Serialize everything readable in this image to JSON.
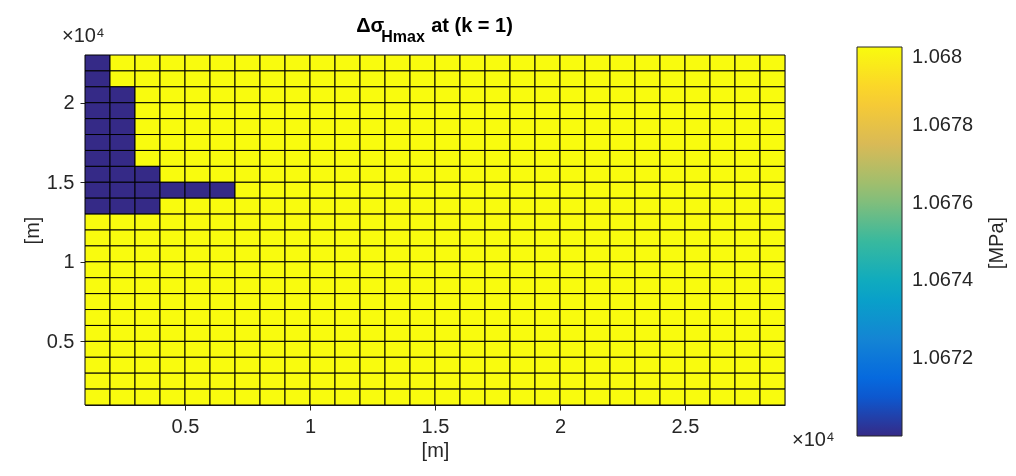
{
  "chart_data": {
    "type": "heatmap",
    "title": "Δσ$_{Hmax}$ at (k = 1)",
    "xlabel": "[m]",
    "ylabel": "[m]",
    "clabel": "[MPa]",
    "annotations": [
      "×10⁴",
      "×10⁴"
    ],
    "cells": [
      [
        1.067,
        1.068,
        1.068,
        1.068,
        1.068,
        1.068,
        1.068,
        1.068,
        1.068,
        1.068,
        1.068,
        1.068,
        1.068,
        1.068,
        1.068,
        1.068,
        1.068,
        1.068,
        1.068,
        1.068,
        1.068,
        1.068,
        1.068,
        1.068,
        1.068,
        1.068,
        1.068,
        1.068
      ],
      [
        1.067,
        1.068,
        1.068,
        1.068,
        1.068,
        1.068,
        1.068,
        1.068,
        1.068,
        1.068,
        1.068,
        1.068,
        1.068,
        1.068,
        1.068,
        1.068,
        1.068,
        1.068,
        1.068,
        1.068,
        1.068,
        1.068,
        1.068,
        1.068,
        1.068,
        1.068,
        1.068,
        1.068
      ],
      [
        1.067,
        1.067,
        1.068,
        1.068,
        1.068,
        1.068,
        1.068,
        1.068,
        1.068,
        1.068,
        1.068,
        1.068,
        1.068,
        1.068,
        1.068,
        1.068,
        1.068,
        1.068,
        1.068,
        1.068,
        1.068,
        1.068,
        1.068,
        1.068,
        1.068,
        1.068,
        1.068,
        1.068
      ],
      [
        1.067,
        1.067,
        1.068,
        1.068,
        1.068,
        1.068,
        1.068,
        1.068,
        1.068,
        1.068,
        1.068,
        1.068,
        1.068,
        1.068,
        1.068,
        1.068,
        1.068,
        1.068,
        1.068,
        1.068,
        1.068,
        1.068,
        1.068,
        1.068,
        1.068,
        1.068,
        1.068,
        1.068
      ],
      [
        1.067,
        1.067,
        1.068,
        1.068,
        1.068,
        1.068,
        1.068,
        1.068,
        1.068,
        1.068,
        1.068,
        1.068,
        1.068,
        1.068,
        1.068,
        1.068,
        1.068,
        1.068,
        1.068,
        1.068,
        1.068,
        1.068,
        1.068,
        1.068,
        1.068,
        1.068,
        1.068,
        1.068
      ],
      [
        1.067,
        1.067,
        1.068,
        1.068,
        1.068,
        1.068,
        1.068,
        1.068,
        1.068,
        1.068,
        1.068,
        1.068,
        1.068,
        1.068,
        1.068,
        1.068,
        1.068,
        1.068,
        1.068,
        1.068,
        1.068,
        1.068,
        1.068,
        1.068,
        1.068,
        1.068,
        1.068,
        1.068
      ],
      [
        1.067,
        1.067,
        1.068,
        1.068,
        1.068,
        1.068,
        1.068,
        1.068,
        1.068,
        1.068,
        1.068,
        1.068,
        1.068,
        1.068,
        1.068,
        1.068,
        1.068,
        1.068,
        1.068,
        1.068,
        1.068,
        1.068,
        1.068,
        1.068,
        1.068,
        1.068,
        1.068,
        1.068
      ],
      [
        1.067,
        1.067,
        1.067,
        1.068,
        1.068,
        1.068,
        1.068,
        1.068,
        1.068,
        1.068,
        1.068,
        1.068,
        1.068,
        1.068,
        1.068,
        1.068,
        1.068,
        1.068,
        1.068,
        1.068,
        1.068,
        1.068,
        1.068,
        1.068,
        1.068,
        1.068,
        1.068,
        1.068
      ],
      [
        1.067,
        1.067,
        1.067,
        1.067,
        1.067,
        1.067,
        1.068,
        1.068,
        1.068,
        1.068,
        1.068,
        1.068,
        1.068,
        1.068,
        1.068,
        1.068,
        1.068,
        1.068,
        1.068,
        1.068,
        1.068,
        1.068,
        1.068,
        1.068,
        1.068,
        1.068,
        1.068,
        1.068
      ],
      [
        1.067,
        1.067,
        1.067,
        1.068,
        1.068,
        1.068,
        1.068,
        1.068,
        1.068,
        1.068,
        1.068,
        1.068,
        1.068,
        1.068,
        1.068,
        1.068,
        1.068,
        1.068,
        1.068,
        1.068,
        1.068,
        1.068,
        1.068,
        1.068,
        1.068,
        1.068,
        1.068,
        1.068
      ],
      [
        1.068,
        1.068,
        1.068,
        1.068,
        1.068,
        1.068,
        1.068,
        1.068,
        1.068,
        1.068,
        1.068,
        1.068,
        1.068,
        1.068,
        1.068,
        1.068,
        1.068,
        1.068,
        1.068,
        1.068,
        1.068,
        1.068,
        1.068,
        1.068,
        1.068,
        1.068,
        1.068,
        1.068
      ],
      [
        1.068,
        1.068,
        1.068,
        1.068,
        1.068,
        1.068,
        1.068,
        1.068,
        1.068,
        1.068,
        1.068,
        1.068,
        1.068,
        1.068,
        1.068,
        1.068,
        1.068,
        1.068,
        1.068,
        1.068,
        1.068,
        1.068,
        1.068,
        1.068,
        1.068,
        1.068,
        1.068,
        1.068
      ],
      [
        1.068,
        1.068,
        1.068,
        1.068,
        1.068,
        1.068,
        1.068,
        1.068,
        1.068,
        1.068,
        1.068,
        1.068,
        1.068,
        1.068,
        1.068,
        1.068,
        1.068,
        1.068,
        1.068,
        1.068,
        1.068,
        1.068,
        1.068,
        1.068,
        1.068,
        1.068,
        1.068,
        1.068
      ],
      [
        1.068,
        1.068,
        1.068,
        1.068,
        1.068,
        1.068,
        1.068,
        1.068,
        1.068,
        1.068,
        1.068,
        1.068,
        1.068,
        1.068,
        1.068,
        1.068,
        1.068,
        1.068,
        1.068,
        1.068,
        1.068,
        1.068,
        1.068,
        1.068,
        1.068,
        1.068,
        1.068,
        1.068
      ],
      [
        1.068,
        1.068,
        1.068,
        1.068,
        1.068,
        1.068,
        1.068,
        1.068,
        1.068,
        1.068,
        1.068,
        1.068,
        1.068,
        1.068,
        1.068,
        1.068,
        1.068,
        1.068,
        1.068,
        1.068,
        1.068,
        1.068,
        1.068,
        1.068,
        1.068,
        1.068,
        1.068,
        1.068
      ],
      [
        1.068,
        1.068,
        1.068,
        1.068,
        1.068,
        1.068,
        1.068,
        1.068,
        1.068,
        1.068,
        1.068,
        1.068,
        1.068,
        1.068,
        1.068,
        1.068,
        1.068,
        1.068,
        1.068,
        1.068,
        1.068,
        1.068,
        1.068,
        1.068,
        1.068,
        1.068,
        1.068,
        1.068
      ],
      [
        1.068,
        1.068,
        1.068,
        1.068,
        1.068,
        1.068,
        1.068,
        1.068,
        1.068,
        1.068,
        1.068,
        1.068,
        1.068,
        1.068,
        1.068,
        1.068,
        1.068,
        1.068,
        1.068,
        1.068,
        1.068,
        1.068,
        1.068,
        1.068,
        1.068,
        1.068,
        1.068,
        1.068
      ],
      [
        1.068,
        1.068,
        1.068,
        1.068,
        1.068,
        1.068,
        1.068,
        1.068,
        1.068,
        1.068,
        1.068,
        1.068,
        1.068,
        1.068,
        1.068,
        1.068,
        1.068,
        1.068,
        1.068,
        1.068,
        1.068,
        1.068,
        1.068,
        1.068,
        1.068,
        1.068,
        1.068,
        1.068
      ],
      [
        1.068,
        1.068,
        1.068,
        1.068,
        1.068,
        1.068,
        1.068,
        1.068,
        1.068,
        1.068,
        1.068,
        1.068,
        1.068,
        1.068,
        1.068,
        1.068,
        1.068,
        1.068,
        1.068,
        1.068,
        1.068,
        1.068,
        1.068,
        1.068,
        1.068,
        1.068,
        1.068,
        1.068
      ],
      [
        1.068,
        1.068,
        1.068,
        1.068,
        1.068,
        1.068,
        1.068,
        1.068,
        1.068,
        1.068,
        1.068,
        1.068,
        1.068,
        1.068,
        1.068,
        1.068,
        1.068,
        1.068,
        1.068,
        1.068,
        1.068,
        1.068,
        1.068,
        1.068,
        1.068,
        1.068,
        1.068,
        1.068
      ],
      [
        1.068,
        1.068,
        1.068,
        1.068,
        1.068,
        1.068,
        1.068,
        1.068,
        1.068,
        1.068,
        1.068,
        1.068,
        1.068,
        1.068,
        1.068,
        1.068,
        1.068,
        1.068,
        1.068,
        1.068,
        1.068,
        1.068,
        1.068,
        1.068,
        1.068,
        1.068,
        1.068,
        1.068
      ],
      [
        1.068,
        1.068,
        1.068,
        1.068,
        1.068,
        1.068,
        1.068,
        1.068,
        1.068,
        1.068,
        1.068,
        1.068,
        1.068,
        1.068,
        1.068,
        1.068,
        1.068,
        1.068,
        1.068,
        1.068,
        1.068,
        1.068,
        1.068,
        1.068,
        1.068,
        1.068,
        1.068,
        1.068
      ]
    ],
    "xlim": [
      0.1,
      2.9
    ],
    "ylim": [
      0.1,
      2.3
    ],
    "xticks": [
      0.5,
      1,
      1.5,
      2,
      2.5
    ],
    "yticks": [
      0.5,
      1,
      1.5,
      2
    ],
    "clim": [
      1.067,
      1.068
    ],
    "cticks": [
      1.0672,
      1.0674,
      1.0676,
      1.0678,
      1.068
    ]
  }
}
